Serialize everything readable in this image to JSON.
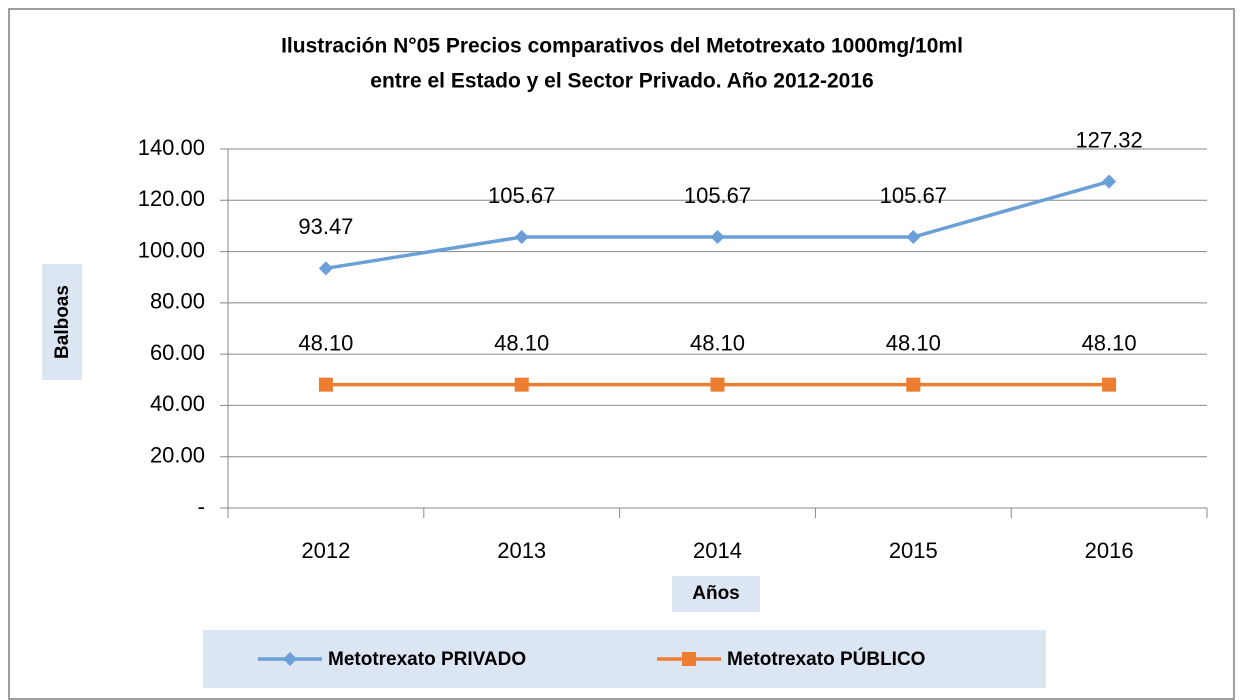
{
  "chart_data": {
    "type": "line",
    "title": [
      "Ilustración  N°05 Precios comparativos del Metotrexato 1000mg/10ml",
      "entre el Estado y el Sector Privado. Año 2012-2016"
    ],
    "categories": [
      "2012",
      "2013",
      "2014",
      "2015",
      "2016"
    ],
    "series": [
      {
        "name": "Metotrexato PRIVADO",
        "color": "#6a9fd8",
        "marker": "diamond",
        "values": [
          93.47,
          105.67,
          105.67,
          105.67,
          127.32
        ]
      },
      {
        "name": "Metotrexato PÚBLICO",
        "color": "#ed7d31",
        "marker": "square",
        "values": [
          48.1,
          48.1,
          48.1,
          48.1,
          48.1
        ],
        "value_labels": [
          "48.10",
          "48.10",
          "48.10",
          "48.10",
          "48.10"
        ]
      }
    ],
    "xlabel": "Años",
    "ylabel": "Balboas",
    "ylim": [
      0,
      140
    ],
    "yticks": [
      {
        "value": 0,
        "label": "-"
      },
      {
        "value": 20,
        "label": "20.00"
      },
      {
        "value": 40,
        "label": "40.00"
      },
      {
        "value": 60,
        "label": "60.00"
      },
      {
        "value": 80,
        "label": "80.00"
      },
      {
        "value": 100,
        "label": "100.00"
      },
      {
        "value": 120,
        "label": "120.00"
      },
      {
        "value": 140,
        "label": "140.00"
      }
    ],
    "grid": true,
    "legend": "bottom"
  }
}
